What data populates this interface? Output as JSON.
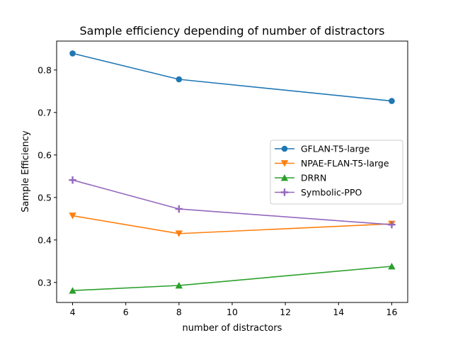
{
  "chart_data": {
    "type": "line",
    "title": "Sample efficiency depending of number of distractors",
    "xlabel": "number of distractors",
    "ylabel": "Sample Efficiency",
    "x": [
      4,
      8,
      16
    ],
    "xlim": [
      3.4,
      16.6
    ],
    "ylim": [
      0.253,
      0.868
    ],
    "xticks": [
      4,
      6,
      8,
      10,
      12,
      14,
      16
    ],
    "yticks": [
      0.3,
      0.4,
      0.5,
      0.6,
      0.7,
      0.8
    ],
    "grid": false,
    "legend_position": "center-right",
    "series": [
      {
        "name": "GFLAN-T5-large",
        "values": [
          0.839,
          0.778,
          0.727
        ],
        "color": "#1f77b4",
        "marker": "circle"
      },
      {
        "name": "NPAE-FLAN-T5-large",
        "values": [
          0.457,
          0.415,
          0.438
        ],
        "color": "#ff7f0e",
        "marker": "triangle-down"
      },
      {
        "name": "DRRN",
        "values": [
          0.281,
          0.293,
          0.338
        ],
        "color": "#2ca02c",
        "marker": "triangle-up"
      },
      {
        "name": "Symbolic-PPO",
        "values": [
          0.541,
          0.473,
          0.436
        ],
        "color": "#9467bd",
        "marker": "plus"
      }
    ]
  }
}
